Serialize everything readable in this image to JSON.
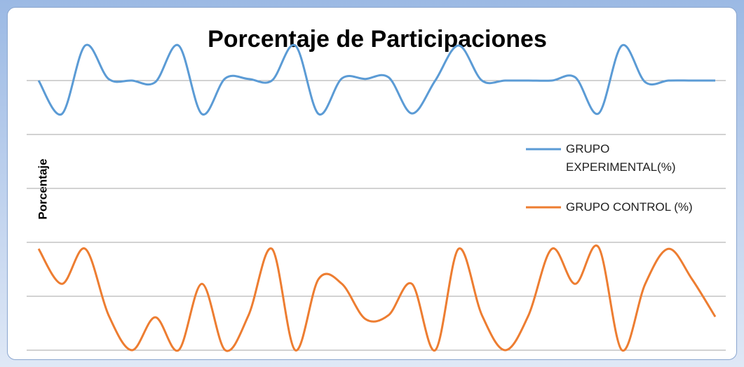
{
  "chart_data": {
    "type": "line",
    "title": "Porcentaje de Participaciones",
    "y_label": "Porcentaje",
    "categories": [
      null,
      null,
      null,
      null,
      null,
      null,
      null,
      null,
      null,
      null,
      null,
      null,
      null,
      null,
      null,
      null,
      null,
      null,
      null,
      null,
      null,
      null,
      null,
      null,
      null,
      null,
      null,
      null,
      null,
      null
    ],
    "series": [
      {
        "name": "GRUPO EXPERIMENTAL(%)",
        "color": "#5b9bd5",
        "values": [
          5.0,
          4.38,
          5.65,
          5.03,
          5.0,
          4.97,
          5.65,
          4.38,
          5.04,
          5.03,
          5.0,
          5.65,
          4.38,
          5.04,
          5.03,
          5.06,
          4.39,
          5.0,
          5.65,
          5.0,
          5.0,
          5.0,
          5.0,
          5.06,
          4.39,
          5.65,
          4.97,
          5.0,
          5.0,
          5.0
        ]
      },
      {
        "name": "GRUPO CONTROL (%)",
        "color": "#ed7d31",
        "values": [
          1.88,
          1.23,
          1.88,
          0.65,
          0,
          0.61,
          0,
          1.23,
          0,
          0.65,
          1.88,
          0,
          1.32,
          1.23,
          0.58,
          0.65,
          1.23,
          0,
          1.88,
          0.65,
          0,
          0.65,
          1.88,
          1.23,
          1.91,
          0,
          1.23,
          1.88,
          1.32,
          0.62
        ]
      }
    ],
    "ylim": [
      0,
      6
    ],
    "yticks": [
      0,
      1,
      2,
      3,
      4,
      5
    ],
    "grid": true,
    "smooth": true,
    "legend": "right"
  }
}
